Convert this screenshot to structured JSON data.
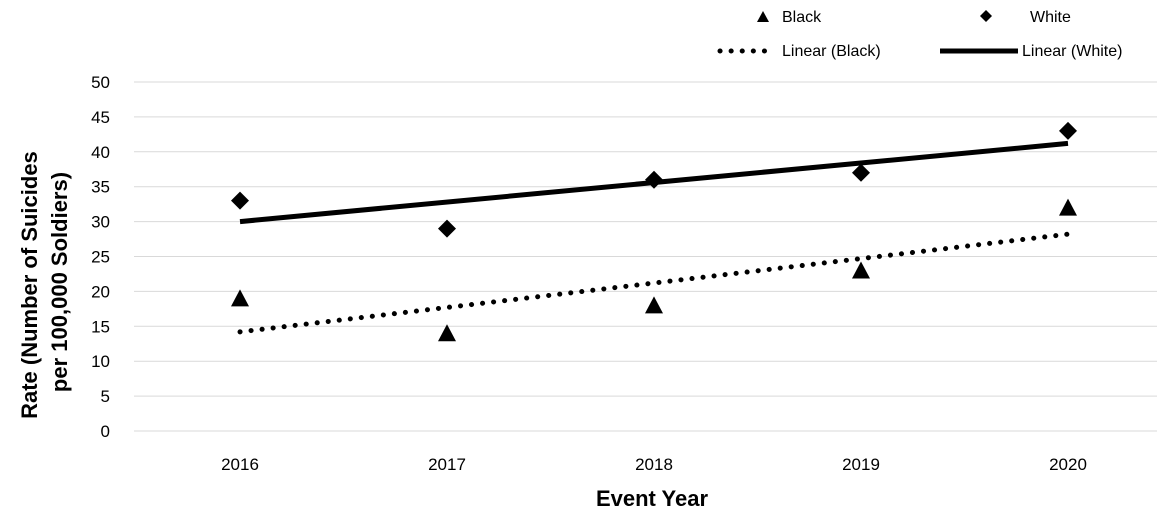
{
  "chart_data": {
    "type": "scatter",
    "xlabel": "Event Year",
    "ylabel_lines": [
      "Rate (Number of Suicides",
      "per 100,000 Soldiers)"
    ],
    "x": [
      2016,
      2017,
      2018,
      2019,
      2020
    ],
    "categories": [
      "2016",
      "2017",
      "2018",
      "2019",
      "2020"
    ],
    "ylim": [
      0,
      50
    ],
    "yticks": [
      "0",
      "5",
      "10",
      "15",
      "20",
      "25",
      "30",
      "35",
      "40",
      "45",
      "50"
    ],
    "grid": true,
    "legend_position": "top-right",
    "series": [
      {
        "name": "Black",
        "marker": "triangle",
        "color": "#000000",
        "values": [
          19,
          14,
          18,
          23,
          32
        ]
      },
      {
        "name": "White",
        "marker": "diamond",
        "color": "#000000",
        "values": [
          33,
          29,
          36,
          37,
          43
        ]
      }
    ],
    "trendlines": [
      {
        "name": "Linear (Black)",
        "style": "dotted",
        "color": "#000000",
        "start": 14.2,
        "end": 28.2
      },
      {
        "name": "Linear (White)",
        "style": "solid",
        "color": "#000000",
        "start": 30.0,
        "end": 41.2
      }
    ]
  }
}
